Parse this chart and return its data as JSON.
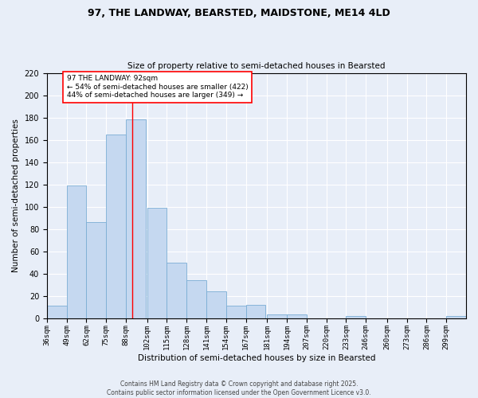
{
  "title1": "97, THE LANDWAY, BEARSTED, MAIDSTONE, ME14 4LD",
  "title2": "Size of property relative to semi-detached houses in Bearsted",
  "xlabel": "Distribution of semi-detached houses by size in Bearsted",
  "ylabel": "Number of semi-detached properties",
  "bin_labels": [
    "36sqm",
    "49sqm",
    "62sqm",
    "75sqm",
    "88sqm",
    "102sqm",
    "115sqm",
    "128sqm",
    "141sqm",
    "154sqm",
    "167sqm",
    "181sqm",
    "194sqm",
    "207sqm",
    "220sqm",
    "233sqm",
    "246sqm",
    "260sqm",
    "273sqm",
    "286sqm",
    "299sqm"
  ],
  "bin_edges": [
    36,
    49,
    62,
    75,
    88,
    102,
    115,
    128,
    141,
    154,
    167,
    181,
    194,
    207,
    220,
    233,
    246,
    260,
    273,
    286,
    299
  ],
  "counts": [
    11,
    119,
    86,
    165,
    178,
    99,
    50,
    34,
    24,
    11,
    12,
    3,
    3,
    0,
    0,
    2,
    0,
    0,
    0,
    0,
    2
  ],
  "bar_color": "#C5D8F0",
  "bar_edge_color": "#7AADD4",
  "property_size": 92,
  "vline_color": "#FF0000",
  "annotation_text": "97 THE LANDWAY: 92sqm\n← 54% of semi-detached houses are smaller (422)\n44% of semi-detached houses are larger (349) →",
  "annotation_box_color": "#FFFFFF",
  "annotation_box_edge": "#FF0000",
  "bg_color": "#E8EEF8",
  "grid_color": "#FFFFFF",
  "footer_text": "Contains HM Land Registry data © Crown copyright and database right 2025.\nContains public sector information licensed under the Open Government Licence v3.0.",
  "ylim": [
    0,
    220
  ],
  "yticks": [
    0,
    20,
    40,
    60,
    80,
    100,
    120,
    140,
    160,
    180,
    200,
    220
  ]
}
